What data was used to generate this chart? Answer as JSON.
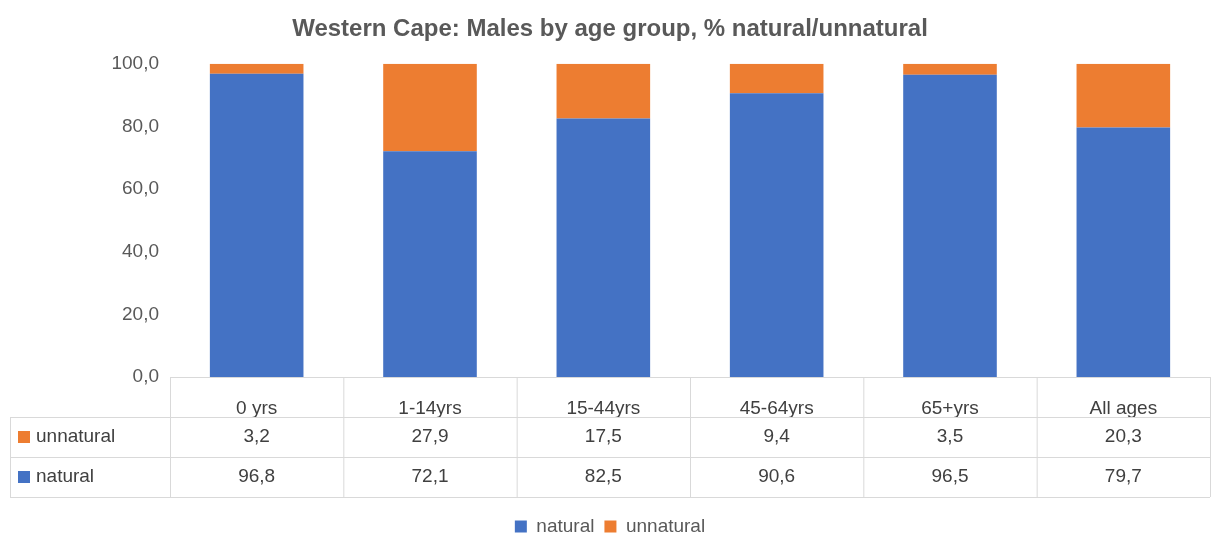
{
  "chart_data": {
    "type": "bar",
    "title": "Western Cape: Males by age group, % natural/unnatural",
    "categories": [
      "0 yrs",
      "1-14yrs",
      "15-44yrs",
      "45-64yrs",
      "65+yrs",
      "All ages"
    ],
    "series": [
      {
        "name": "natural",
        "color": "#4472c4",
        "values": [
          96.8,
          72.1,
          82.5,
          90.6,
          96.5,
          79.7
        ]
      },
      {
        "name": "unnatural",
        "color": "#ed7d31",
        "values": [
          3.2,
          27.9,
          17.5,
          9.4,
          3.5,
          20.3
        ]
      }
    ],
    "stacked": true,
    "ylim": [
      0,
      100
    ],
    "yticks": [
      {
        "value": 0,
        "label": "0,0"
      },
      {
        "value": 20,
        "label": "20,0"
      },
      {
        "value": 40,
        "label": "40,0"
      },
      {
        "value": 60,
        "label": "60,0"
      },
      {
        "value": 80,
        "label": "80,0"
      },
      {
        "value": 100,
        "label": "100,0"
      }
    ],
    "value_labels": [
      [
        "96,8",
        "72,1",
        "82,5",
        "90,6",
        "96,5",
        "79,7"
      ],
      [
        "3,2",
        "27,9",
        "17,5",
        "9,4",
        "3,5",
        "20,3"
      ]
    ],
    "grid": false,
    "legend": "bottom"
  }
}
